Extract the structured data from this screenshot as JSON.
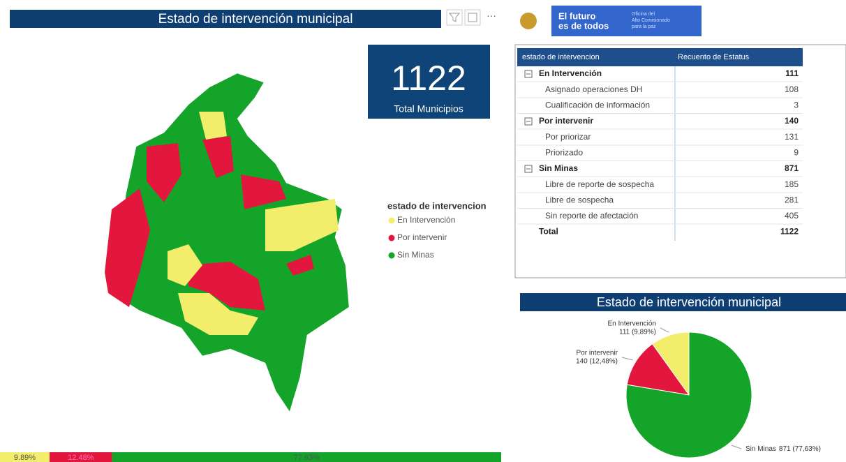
{
  "header": {
    "title": "Estado de intervención municipal"
  },
  "kpi": {
    "value": 1122,
    "label": "Total Municipios"
  },
  "legend": {
    "title": "estado de intervencion"
  },
  "logo": {
    "line1": "El futuro",
    "line2": "es de todos",
    "office": [
      "Oficina del",
      "Alto Comisionado",
      "para la paz"
    ]
  },
  "table": {
    "headers": [
      "estado de intervencion",
      "Recuento de Estatus"
    ],
    "groups": [
      {
        "name": "En Intervención",
        "total": 111,
        "children": [
          {
            "name": "Asignado operaciones DH",
            "value": 108
          },
          {
            "name": "Cualificación de información",
            "value": 3
          }
        ]
      },
      {
        "name": "Por intervenir",
        "total": 140,
        "children": [
          {
            "name": "Por priorizar",
            "value": 131
          },
          {
            "name": "Priorizado",
            "value": 9
          }
        ]
      },
      {
        "name": "Sin Minas",
        "total": 871,
        "children": [
          {
            "name": "Libre de reporte de sospecha",
            "value": 185
          },
          {
            "name": "Libre de sospecha",
            "value": 281
          },
          {
            "name": "Sin reporte de afectación",
            "value": 405
          }
        ]
      }
    ],
    "total": {
      "label": "Total",
      "value": 1122
    }
  },
  "chart_data": {
    "type": "pie",
    "title": "Estado de intervención municipal",
    "categories": [
      "En Intervención",
      "Por intervenir",
      "Sin Minas"
    ],
    "values": [
      111,
      140,
      871
    ],
    "value_labels": [
      "111 (9,89%)",
      "140 (12,48%)",
      "871 (77,63%)"
    ],
    "colors": [
      "#f2ee6b",
      "#e3173e",
      "#14a42a"
    ]
  },
  "strip": {
    "values": [
      9.89,
      12.48,
      77.63
    ],
    "value_labels": [
      "9.89%",
      "12.48%",
      "77.63%"
    ]
  }
}
